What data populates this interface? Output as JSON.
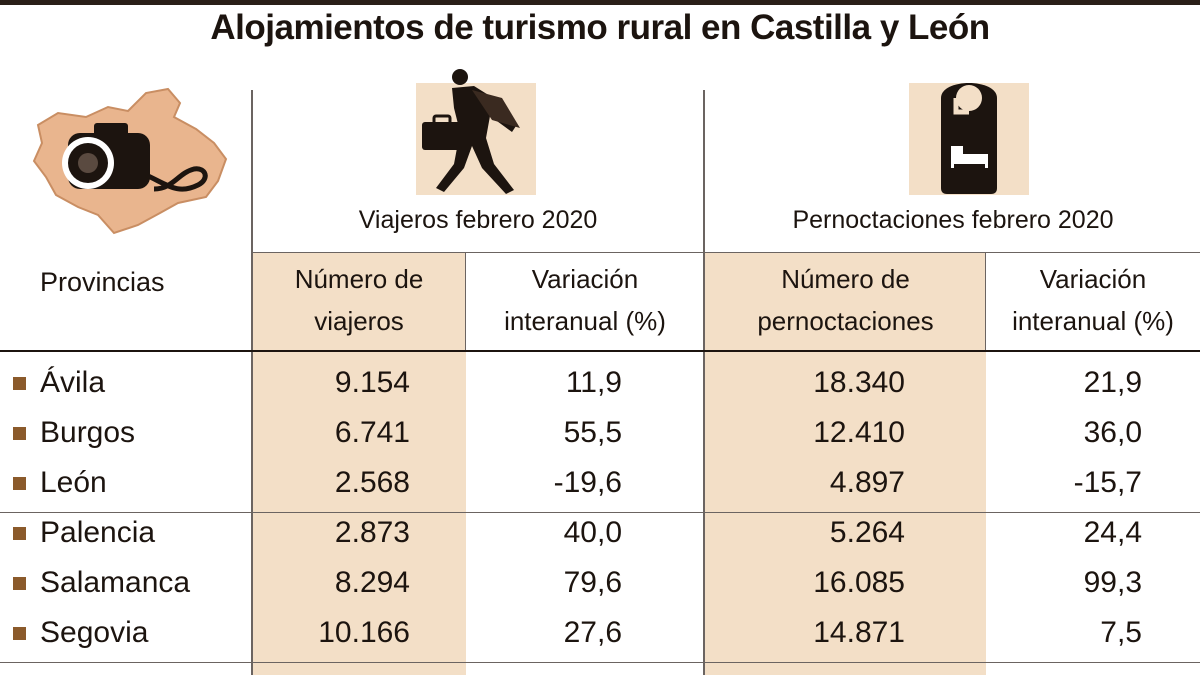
{
  "chart_data": {
    "type": "table",
    "title": "Alojamientos de turismo rural en Castilla y León",
    "row_header": "Provincias",
    "groups": [
      {
        "label": "Viajeros febrero 2020",
        "icon": "traveler-icon",
        "columns": [
          {
            "line1": "Número de",
            "line2": "viajeros"
          },
          {
            "line1": "Variación",
            "line2": "interanual (%)"
          }
        ]
      },
      {
        "label": "Pernoctaciones febrero 2020",
        "icon": "door-hanger-bed-icon",
        "columns": [
          {
            "line1": "Número de",
            "line2": "pernoctaciones"
          },
          {
            "line1": "Variación",
            "line2": "interanual (%)"
          }
        ]
      }
    ],
    "rows": [
      {
        "province": "Ávila",
        "viajeros": "9.154",
        "var_viajeros": "11,9",
        "pernoctaciones": "18.340",
        "var_pernoctaciones": "21,9"
      },
      {
        "province": "Burgos",
        "viajeros": "6.741",
        "var_viajeros": "55,5",
        "pernoctaciones": "12.410",
        "var_pernoctaciones": "36,0"
      },
      {
        "province": "León",
        "viajeros": "2.568",
        "var_viajeros": "-19,6",
        "pernoctaciones": "4.897",
        "var_pernoctaciones": "-15,7"
      },
      {
        "province": "Palencia",
        "viajeros": "2.873",
        "var_viajeros": "40,0",
        "pernoctaciones": "5.264",
        "var_pernoctaciones": "24,4"
      },
      {
        "province": "Salamanca",
        "viajeros": "8.294",
        "var_viajeros": "79,6",
        "pernoctaciones": "16.085",
        "var_pernoctaciones": "99,3"
      },
      {
        "province": "Segovia",
        "viajeros": "10.166",
        "var_viajeros": "27,6",
        "pernoctaciones": "14.871",
        "var_pernoctaciones": "7,5"
      }
    ]
  },
  "colors": {
    "shade": "#f3dfc7",
    "map_fill": "#e9b58e",
    "bullet": "#8b5a2b",
    "ink": "#1c140f"
  },
  "icons": [
    "castilla-leon-map-camera-icon",
    "traveler-icon",
    "door-hanger-bed-icon"
  ]
}
